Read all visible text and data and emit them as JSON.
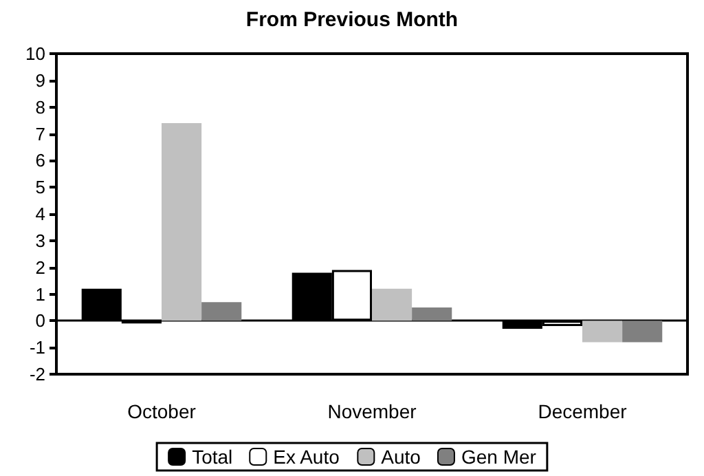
{
  "chart_data": {
    "type": "bar",
    "title": "From Previous Month",
    "categories": [
      "October",
      "November",
      "December"
    ],
    "series": [
      {
        "name": "Total",
        "color": "#000000",
        "values": [
          1.2,
          1.8,
          -0.3
        ]
      },
      {
        "name": "Ex Auto",
        "color": "#ffffff",
        "values": [
          -0.1,
          1.9,
          -0.2
        ]
      },
      {
        "name": "Auto",
        "color": "#c0c0c0",
        "values": [
          7.4,
          1.2,
          -0.8
        ]
      },
      {
        "name": "Gen Mer",
        "color": "#808080",
        "values": [
          0.7,
          0.5,
          -0.8
        ]
      }
    ],
    "ylim": [
      -2,
      10
    ],
    "yticks": [
      -2,
      -1,
      0,
      1,
      2,
      3,
      4,
      5,
      6,
      7,
      8,
      9,
      10
    ],
    "legend": "bottom"
  }
}
